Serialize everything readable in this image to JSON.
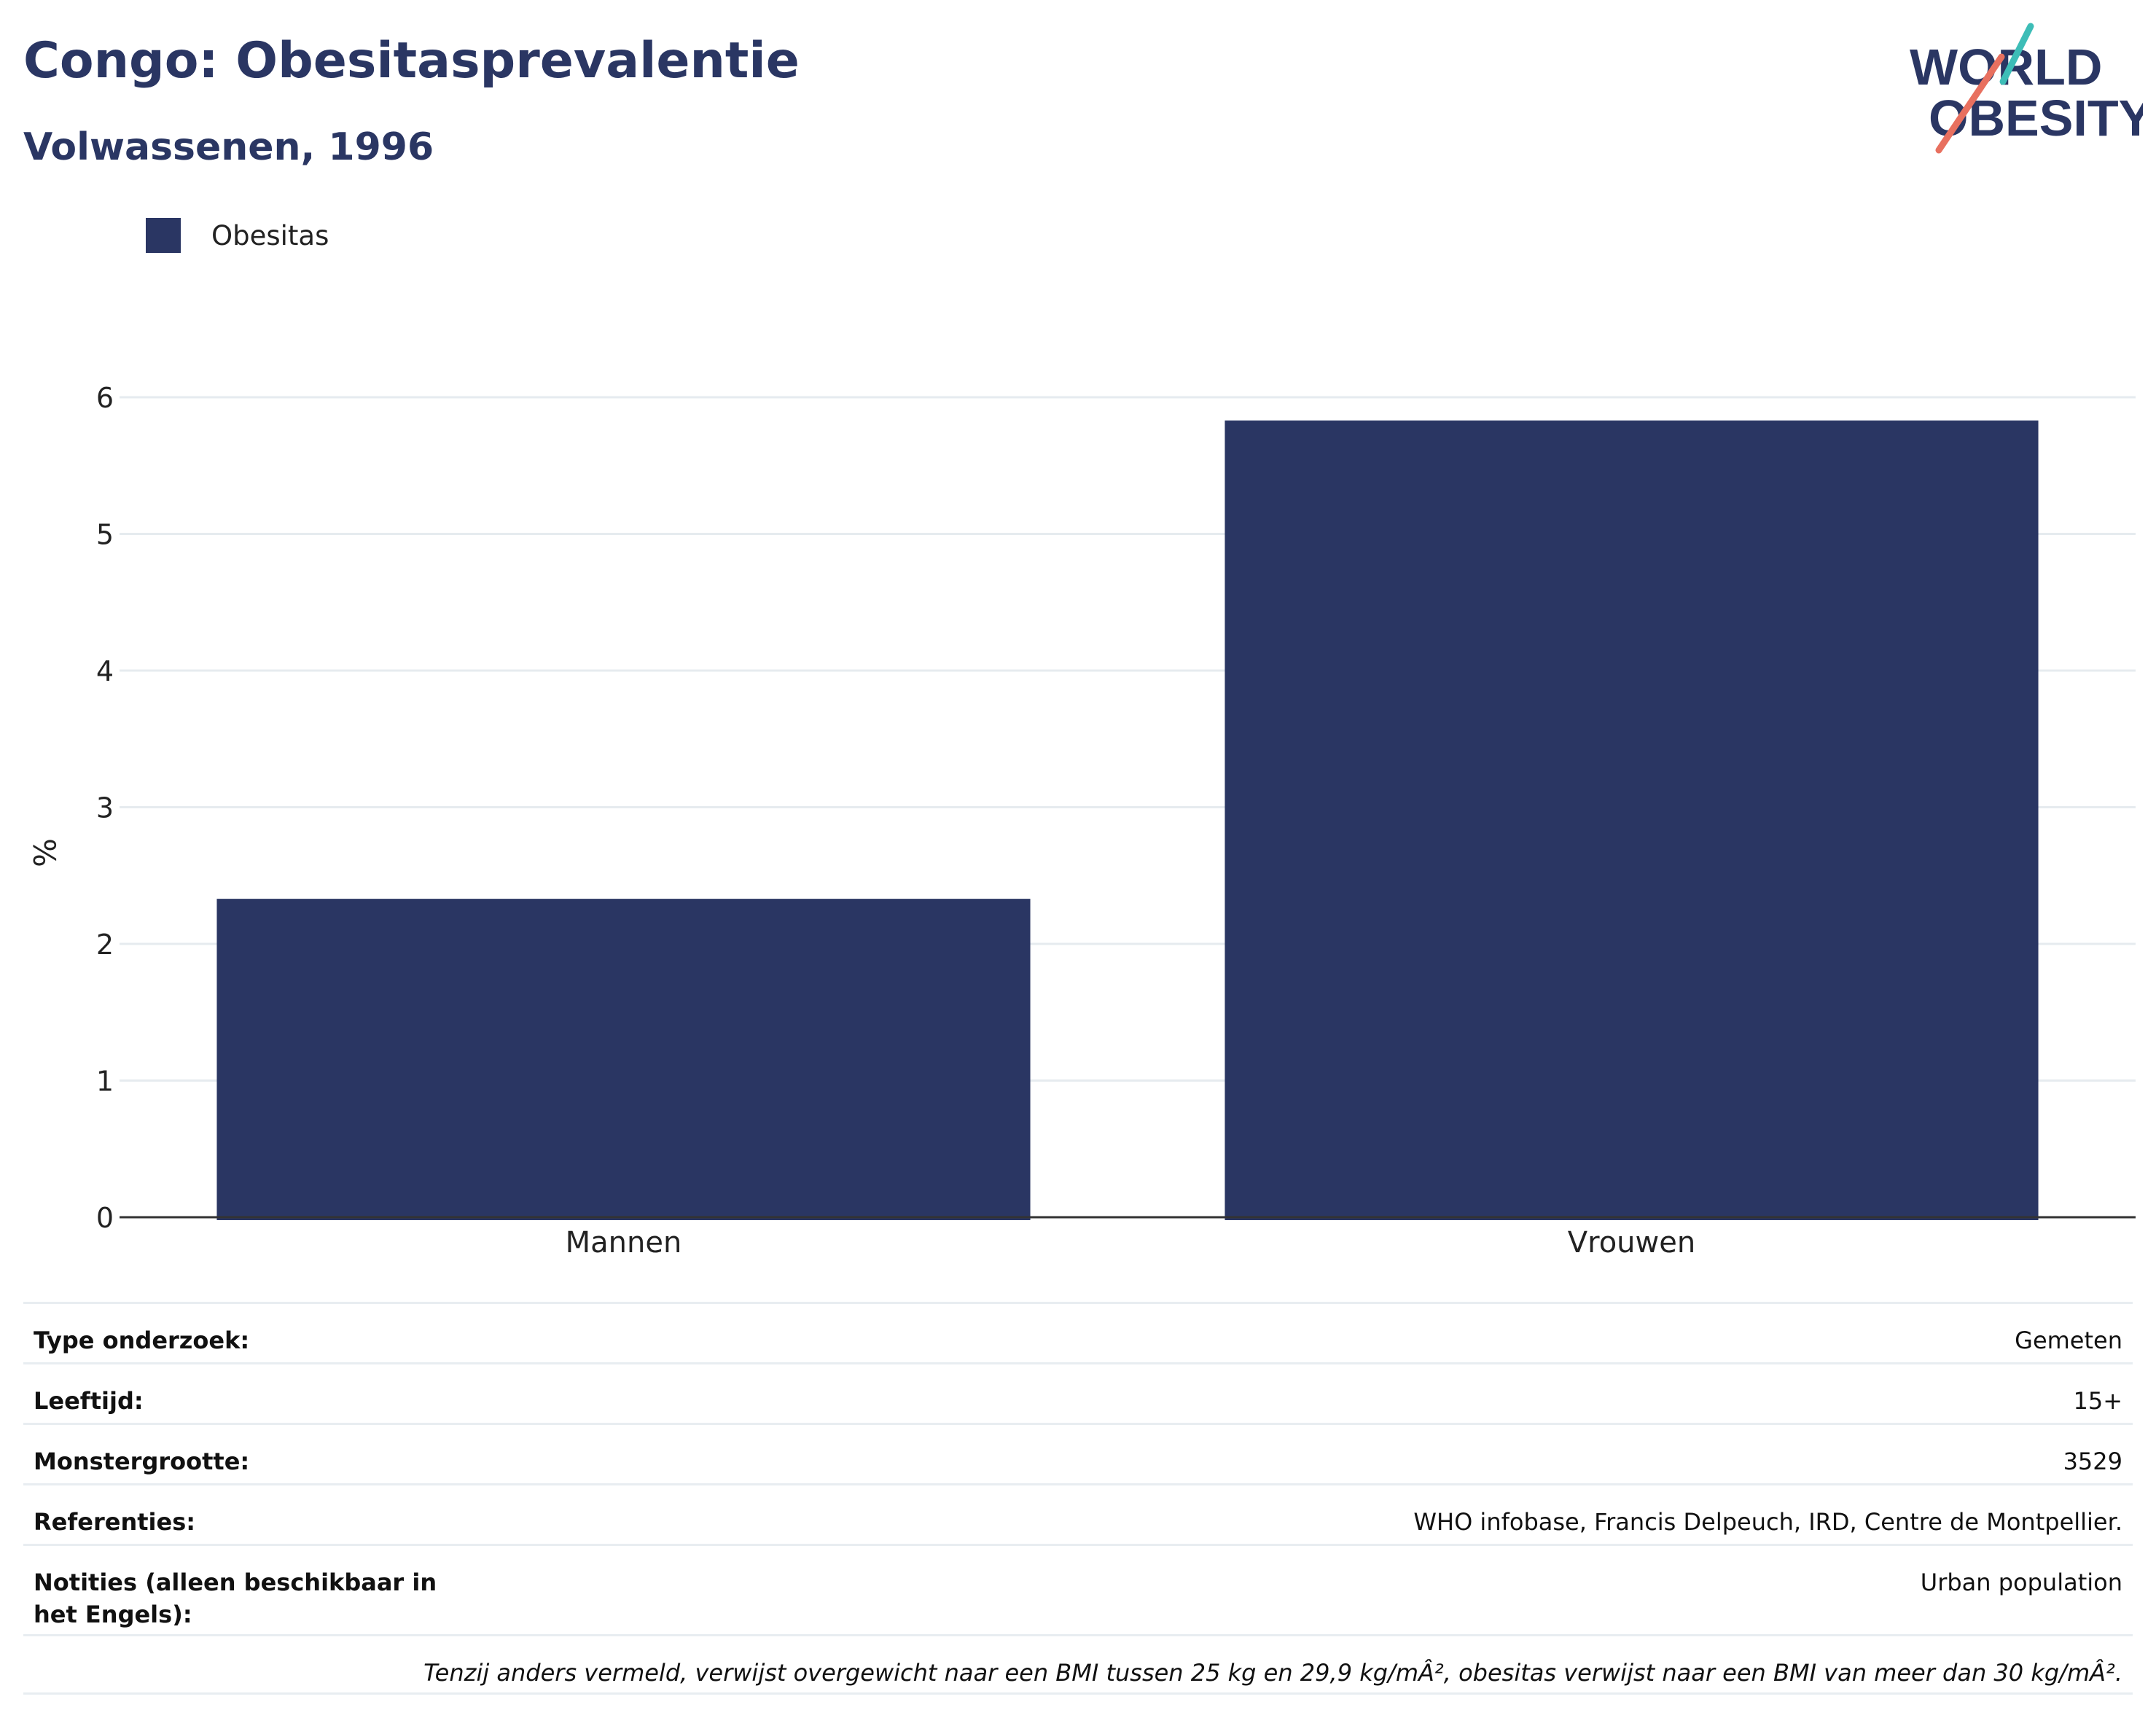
{
  "header": {
    "title": "Congo: Obesitasprevalentie",
    "subtitle": "Volwassenen, 1996"
  },
  "logo": {
    "line1": "WORLD",
    "line2": "OBESITY",
    "text_color": "#2a3663",
    "accent_teal": "#3dbdb7",
    "accent_coral": "#e8705f"
  },
  "legend": {
    "items": [
      {
        "label": "Obesitas",
        "color": "#2a3663"
      }
    ]
  },
  "chart_data": {
    "type": "bar",
    "categories": [
      "Mannen",
      "Vrouwen"
    ],
    "series": [
      {
        "name": "Obesitas",
        "values": [
          2.33,
          5.83
        ],
        "color": "#2a3663"
      }
    ],
    "ylabel": "%",
    "xlabel": "",
    "ylim": [
      0,
      6.4
    ],
    "yticks": [
      0,
      1,
      2,
      3,
      4,
      5,
      6
    ],
    "grid": true,
    "legend_position": "top-left"
  },
  "info": {
    "rows": [
      {
        "label": "Type onderzoek:",
        "value": "Gemeten"
      },
      {
        "label": "Leeftijd:",
        "value": "15+"
      },
      {
        "label": "Monstergrootte:",
        "value": "3529"
      },
      {
        "label": "Referenties:",
        "value": "WHO infobase, Francis Delpeuch, IRD, Centre de Montpellier."
      },
      {
        "label": "Notities (alleen beschikbaar in het Engels):",
        "value": "Urban population"
      }
    ],
    "footnote": "Tenzij anders vermeld, verwijst overgewicht naar een BMI tussen 25 kg en 29,9 kg/mÂ², obesitas verwijst naar een BMI van meer dan 30 kg/mÂ²."
  }
}
